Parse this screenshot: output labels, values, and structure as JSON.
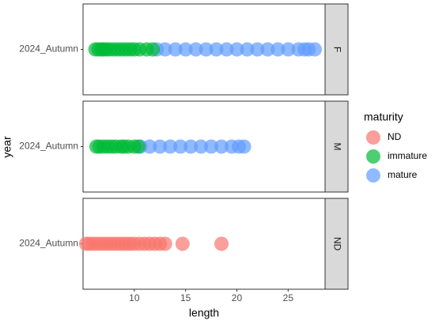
{
  "chart_data": {
    "type": "scatter",
    "x_label": "length",
    "y_label": "year",
    "categories": [
      "2024_Autumn"
    ],
    "facets": [
      "F",
      "M",
      "ND"
    ],
    "legend_title": "maturity",
    "xlim": [
      5.0,
      28.6
    ],
    "xticks": [
      10,
      15,
      20,
      25
    ],
    "series": [
      {
        "name": "ND",
        "color": "#F8766D",
        "values": [
          5.3,
          5.6,
          6.0,
          6.4,
          6.8,
          7.2,
          7.6,
          8.0,
          8.4,
          8.8,
          9.2,
          9.6,
          10.0,
          10.5,
          11.0,
          11.5,
          12.0,
          12.5,
          13.0,
          14.7,
          18.5
        ],
        "facet": [
          "ND",
          "ND",
          "ND",
          "ND",
          "ND",
          "ND",
          "ND",
          "ND",
          "ND",
          "ND",
          "ND",
          "ND",
          "ND",
          "ND",
          "ND",
          "ND",
          "ND",
          "ND",
          "ND",
          "ND",
          "ND"
        ]
      },
      {
        "name": "immature",
        "color": "#00BA38",
        "values": [
          6.2,
          6.5,
          6.8,
          7.0,
          7.3,
          7.6,
          8.0,
          8.4,
          8.8,
          9.2,
          9.6,
          10.0,
          10.5,
          11.2,
          11.8,
          6.3,
          6.6,
          7.0,
          7.4,
          7.8,
          8.2,
          8.7,
          9.0,
          9.4,
          10.0,
          10.4
        ],
        "facet": [
          "F",
          "F",
          "F",
          "F",
          "F",
          "F",
          "F",
          "F",
          "F",
          "F",
          "F",
          "F",
          "F",
          "F",
          "F",
          "M",
          "M",
          "M",
          "M",
          "M",
          "M",
          "M",
          "M",
          "M",
          "M",
          "M"
        ]
      },
      {
        "name": "mature",
        "color": "#619CFF",
        "values": [
          12.2,
          13.0,
          14.0,
          15.0,
          16.0,
          17.0,
          18.0,
          19.0,
          20.0,
          21.0,
          22.0,
          23.0,
          24.0,
          25.0,
          26.0,
          26.6,
          27.0,
          27.6,
          10.6,
          11.5,
          12.5,
          13.5,
          14.5,
          15.5,
          16.5,
          17.5,
          18.5,
          19.5,
          20.2,
          20.7
        ],
        "facet": [
          "F",
          "F",
          "F",
          "F",
          "F",
          "F",
          "F",
          "F",
          "F",
          "F",
          "F",
          "F",
          "F",
          "F",
          "F",
          "F",
          "F",
          "F",
          "M",
          "M",
          "M",
          "M",
          "M",
          "M",
          "M",
          "M",
          "M",
          "M",
          "M",
          "M"
        ]
      }
    ]
  }
}
